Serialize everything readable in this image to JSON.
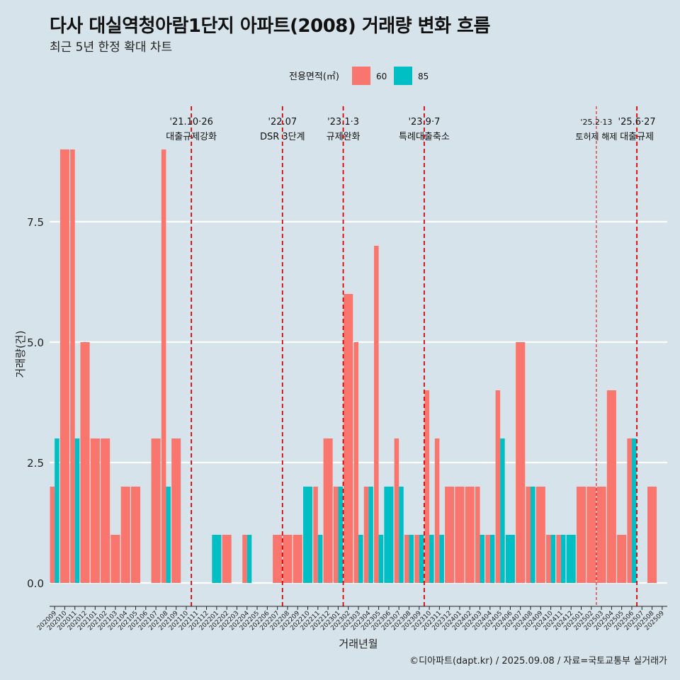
{
  "title": "다사 대실역청아람1단지 아파트(2008) 거래량 변화 흐름",
  "subtitle": "최근 5년 한정 확대 차트",
  "credit": "©디아파트(dapt.kr) / 2025.09.08 / 자료=국토교통부 실거래가",
  "colors": {
    "60": "#F8766D",
    "85": "#00BFC4",
    "event_line": "#e00000",
    "background": "#d7e3ea",
    "grid": "#ffffff"
  },
  "chart_data": {
    "type": "bar",
    "xlabel": "거래년월",
    "ylabel": "거래량(건)",
    "ylim": [
      0,
      9
    ],
    "yticks": [
      "0.0",
      "2.5",
      "5.0",
      "7.5"
    ],
    "legend_title": "전용면적(㎡)",
    "legend_position": "top",
    "grid": true,
    "categories": [
      "202009",
      "202010",
      "202011",
      "202012",
      "202101",
      "202102",
      "202103",
      "202104",
      "202105",
      "202106",
      "202107",
      "202108",
      "202109",
      "202110",
      "202111",
      "202112",
      "202201",
      "202202",
      "202203",
      "202204",
      "202205",
      "202206",
      "202207",
      "202208",
      "202209",
      "202210",
      "202211",
      "202212",
      "202301",
      "202302",
      "202303",
      "202304",
      "202305",
      "202306",
      "202307",
      "202308",
      "202309",
      "202310",
      "202311",
      "202312",
      "202401",
      "202402",
      "202403",
      "202404",
      "202405",
      "202406",
      "202407",
      "202408",
      "202409",
      "202410",
      "202411",
      "202412",
      "202501",
      "202502",
      "202503",
      "202504",
      "202505",
      "202506",
      "202507",
      "202508",
      "202509"
    ],
    "series": [
      {
        "name": "60",
        "values": [
          2,
          9,
          9,
          5,
          3,
          3,
          1,
          2,
          2,
          0,
          3,
          9,
          3,
          0,
          0,
          0,
          0,
          1,
          0,
          1,
          0,
          0,
          1,
          1,
          1,
          0,
          2,
          3,
          2,
          6,
          5,
          2,
          7,
          0,
          3,
          1,
          1,
          4,
          3,
          2,
          2,
          2,
          2,
          1,
          4,
          0,
          5,
          2,
          2,
          1,
          1,
          0,
          2,
          2,
          2,
          4,
          1,
          3,
          0,
          2,
          0
        ]
      },
      {
        "name": "85",
        "values": [
          3,
          0,
          3,
          0,
          0,
          0,
          0,
          0,
          0,
          0,
          0,
          2,
          0,
          0,
          0,
          0,
          1,
          0,
          0,
          1,
          0,
          0,
          0,
          0,
          0,
          2,
          1,
          0,
          2,
          0,
          1,
          2,
          1,
          2,
          2,
          1,
          1,
          1,
          1,
          0,
          0,
          0,
          1,
          1,
          3,
          1,
          0,
          2,
          0,
          1,
          1,
          1,
          0,
          0,
          0,
          0,
          0,
          3,
          0,
          0,
          0
        ]
      }
    ],
    "events": [
      {
        "date": "'21.10·26",
        "label": "대출규제강화",
        "after_category": "202110",
        "style": "dashed"
      },
      {
        "date": "'22.07",
        "label": "DSR 3단계",
        "after_category": "202207",
        "style": "dashed"
      },
      {
        "date": "'23.1·3",
        "label": "규제완화",
        "after_category": "202301",
        "style": "dashed"
      },
      {
        "date": "'23.9·7",
        "label": "특례대출축소",
        "after_category": "202309",
        "style": "dashed"
      },
      {
        "date": "'25.2·13",
        "label": "토허제 해제",
        "after_category": "202502",
        "style": "thin"
      },
      {
        "date": "'25.6·27",
        "label": "대출규제",
        "after_category": "202506",
        "style": "dashed"
      }
    ]
  }
}
